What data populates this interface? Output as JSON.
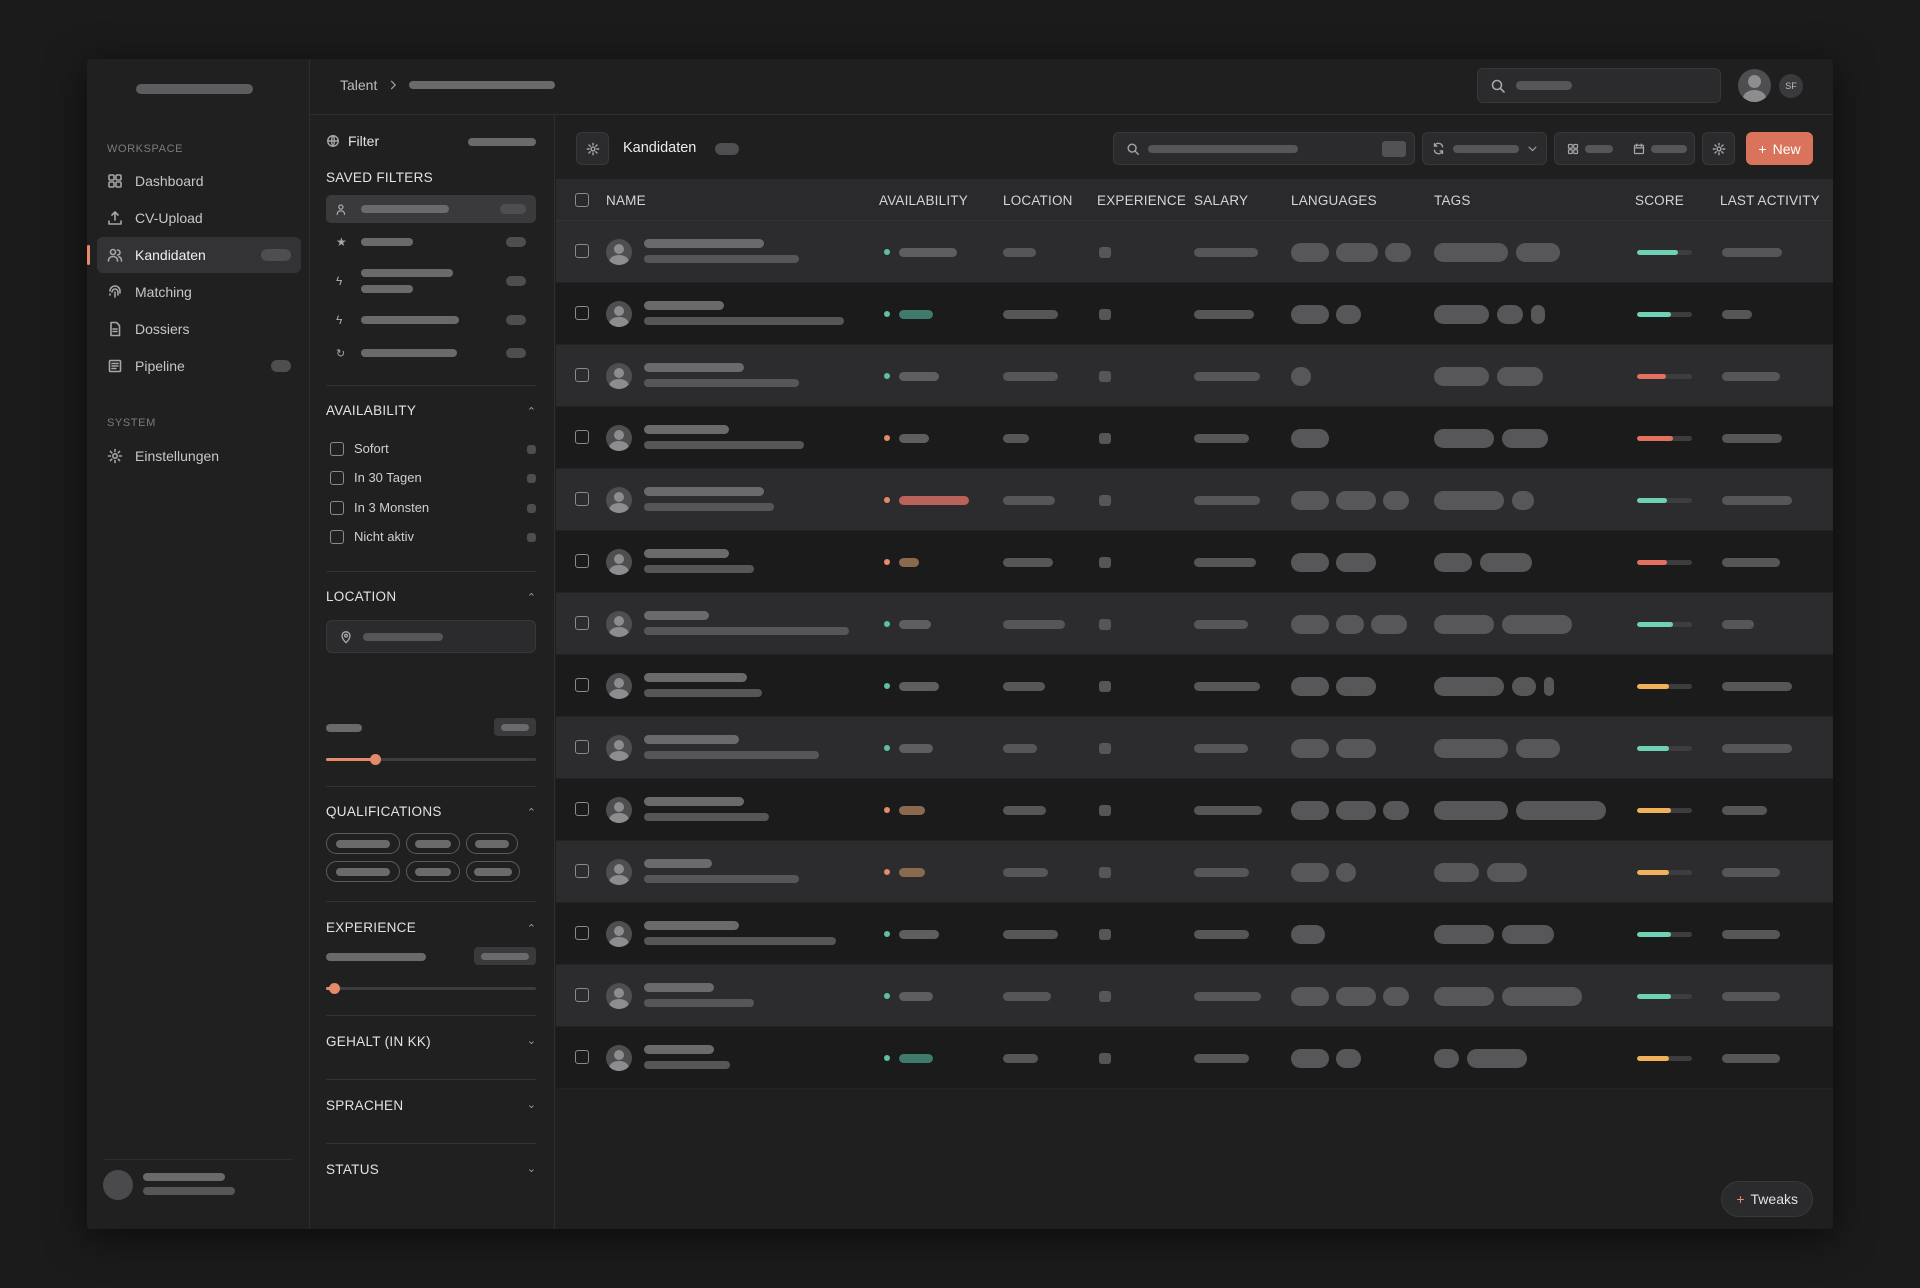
{
  "sidebar": {
    "section_workspace": "WORKSPACE",
    "section_system": "SYSTEM",
    "items": [
      {
        "label": "Dashboard",
        "icon": "grid-icon",
        "active": false
      },
      {
        "label": "CV-Upload",
        "icon": "upload-icon",
        "active": false
      },
      {
        "label": "Kandidaten",
        "icon": "users-icon",
        "active": true
      },
      {
        "label": "Matching",
        "icon": "fingerprint-icon",
        "active": false
      },
      {
        "label": "Dossiers",
        "icon": "document-icon",
        "active": false
      },
      {
        "label": "Pipeline",
        "icon": "pipeline-icon",
        "active": false
      }
    ],
    "settings_label": "Einstellungen"
  },
  "topbar": {
    "breadcrumb_root": "Talent",
    "initials": "SF"
  },
  "filters": {
    "title": "Filter",
    "saved_title": "SAVED FILTERS",
    "availability_title": "AVAILABILITY",
    "availability_options": [
      "Sofort",
      "In 30 Tagen",
      "In 3 Monsten",
      "Nicht aktiv"
    ],
    "location_title": "LOCATION",
    "qualifications_title": "QUALIFICATIONS",
    "experience_title": "EXPERIENCE",
    "salary_title": "GEHALT (IN KK)",
    "languages_title": "SPRACHEN",
    "status_title": "STATUS"
  },
  "main": {
    "view_title": "Kandidaten",
    "new_label": "New",
    "tweaks_label": "Tweaks",
    "columns": [
      "NAME",
      "AVAILABILITY",
      "LOCATION",
      "EXPERIENCE",
      "SALARY",
      "LANGUAGES",
      "TAGS",
      "SCORE",
      "LAST ACTIVITY"
    ]
  },
  "colors": {
    "accent": "#d9735c",
    "status_green": "#5fbfa6",
    "status_orange": "#e58a6a",
    "score_green": "#6fd1b6",
    "score_red": "#e2715f",
    "score_yellow": "#f0b15a"
  },
  "rows": [
    {
      "status": "green",
      "avail_tone": "gray",
      "score_tone": "green",
      "score": 0.75,
      "langs": 3,
      "tags": 2
    },
    {
      "status": "green",
      "avail_tone": "teal",
      "score_tone": "green",
      "score": 0.62,
      "langs": 2,
      "tags": 3
    },
    {
      "status": "green",
      "avail_tone": "gray",
      "score_tone": "red",
      "score": 0.52,
      "langs": 1,
      "tags": 2
    },
    {
      "status": "orange",
      "avail_tone": "gray",
      "score_tone": "red",
      "score": 0.65,
      "langs": 1,
      "tags": 2
    },
    {
      "status": "orange",
      "avail_tone": "red",
      "score_tone": "green",
      "score": 0.55,
      "langs": 3,
      "tags": 2
    },
    {
      "status": "orange",
      "avail_tone": "brown",
      "score_tone": "red",
      "score": 0.55,
      "langs": 2,
      "tags": 2
    },
    {
      "status": "green",
      "avail_tone": "gray",
      "score_tone": "green",
      "score": 0.65,
      "langs": 3,
      "tags": 2
    },
    {
      "status": "green",
      "avail_tone": "gray",
      "score_tone": "yellow",
      "score": 0.58,
      "langs": 2,
      "tags": 3
    },
    {
      "status": "green",
      "avail_tone": "gray",
      "score_tone": "green",
      "score": 0.58,
      "langs": 2,
      "tags": 2
    },
    {
      "status": "orange",
      "avail_tone": "brown",
      "score_tone": "yellow",
      "score": 0.62,
      "langs": 3,
      "tags": 2
    },
    {
      "status": "orange",
      "avail_tone": "brown",
      "score_tone": "yellow",
      "score": 0.58,
      "langs": 2,
      "tags": 2
    },
    {
      "status": "green",
      "avail_tone": "gray",
      "score_tone": "green",
      "score": 0.62,
      "langs": 1,
      "tags": 2
    },
    {
      "status": "green",
      "avail_tone": "gray",
      "score_tone": "green",
      "score": 0.62,
      "langs": 3,
      "tags": 2
    },
    {
      "status": "green",
      "avail_tone": "teal",
      "score_tone": "yellow",
      "score": 0.58,
      "langs": 2,
      "tags": 2
    }
  ]
}
